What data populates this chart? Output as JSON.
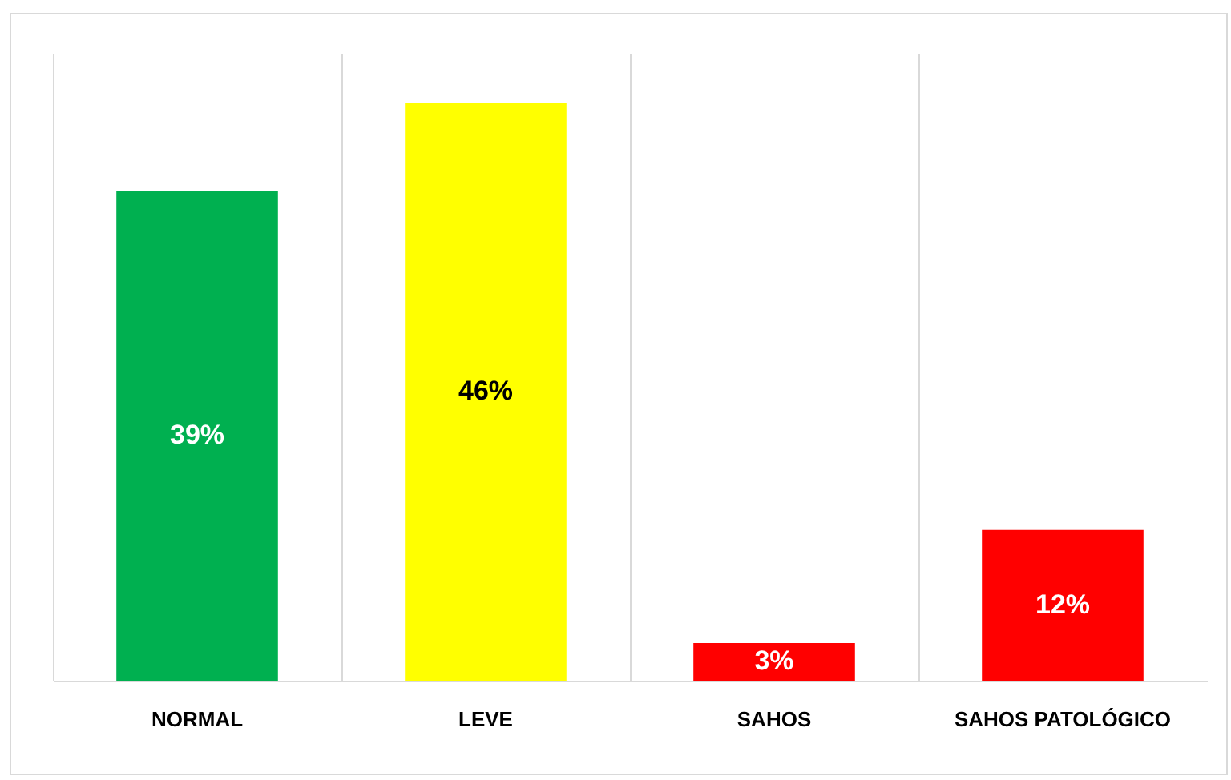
{
  "chart_data": {
    "type": "bar",
    "categories": [
      "NORMAL",
      "LEVE",
      "SAHOS",
      "SAHOS PATOLÓGICO"
    ],
    "values": [
      39,
      46,
      3,
      12
    ],
    "colors": [
      "#00b050",
      "#ffff00",
      "#ff0000",
      "#ff0000"
    ],
    "ylim": [
      0,
      50
    ],
    "value_labels": [
      "39%",
      "46%",
      "3%",
      "12%"
    ],
    "grid": "x",
    "tick_labels": "x"
  }
}
